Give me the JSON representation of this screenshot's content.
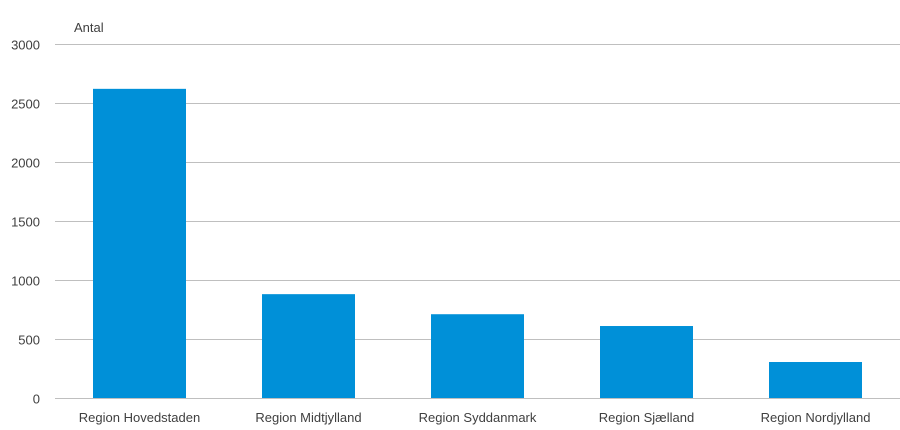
{
  "chart_data": {
    "type": "bar",
    "ylabel": "Antal",
    "xlabel": "",
    "categories": [
      "Region Hovedstaden",
      "Region Midtjylland",
      "Region Syddanmark",
      "Region Sjælland",
      "Region Nordjylland"
    ],
    "values": [
      2620,
      880,
      710,
      610,
      305
    ],
    "ylim": [
      0,
      3000
    ],
    "yticks": [
      0,
      500,
      1000,
      1500,
      2000,
      2500,
      3000
    ],
    "grid": true,
    "legend": "none",
    "colors": {
      "bar": "#0090d8"
    }
  }
}
